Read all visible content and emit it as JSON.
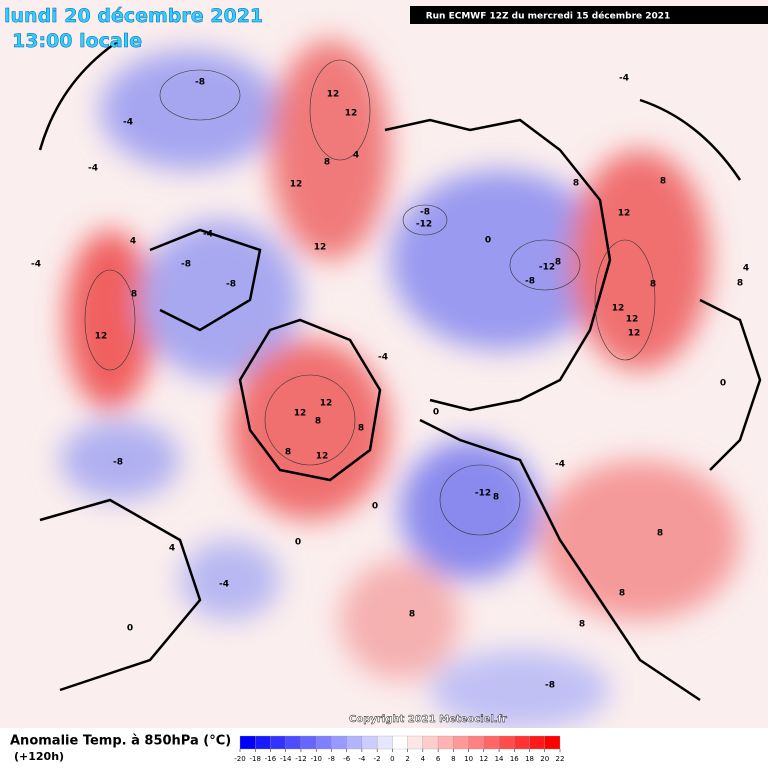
{
  "header": {
    "date": "lundi 20 décembre 2021",
    "time": "13:00 locale",
    "run": "Run ECMWF 12Z du mercredi 15 décembre 2021"
  },
  "map": {
    "contour_labels": [
      -8,
      -4,
      -4,
      12,
      12,
      8,
      12,
      12,
      4,
      -8,
      -12,
      0,
      -12,
      8,
      -8,
      -4,
      8,
      12,
      8,
      8,
      12,
      12,
      12,
      -4,
      -8,
      4,
      -4,
      8,
      12,
      -8,
      12,
      12,
      8,
      8,
      12,
      8,
      -4,
      -12,
      8,
      -8,
      4,
      -4,
      0,
      8,
      8,
      8,
      -8,
      8,
      0,
      0,
      0,
      -4,
      0,
      8,
      4
    ]
  },
  "legend": {
    "title": "Anomalie Temp. à 850hPa (°C)",
    "lead": "(+120h)",
    "copyright": "Copyright 2021 Meteociel.fr",
    "ticks": [
      -20,
      -18,
      -16,
      -14,
      -12,
      -10,
      -8,
      -6,
      -4,
      -2,
      0,
      2,
      4,
      6,
      8,
      10,
      12,
      14,
      16,
      18,
      20,
      22
    ],
    "colors": [
      "#0000ff",
      "#1a1aff",
      "#3333ff",
      "#4d4dff",
      "#6666ff",
      "#8080ff",
      "#9999ff",
      "#b3b3ff",
      "#ccccff",
      "#e6e6ff",
      "#ffffff",
      "#ffe6e6",
      "#ffcccc",
      "#ffb3b3",
      "#ff9999",
      "#ff8080",
      "#ff6666",
      "#ff4d4d",
      "#ff3333",
      "#ff1a1a",
      "#ff0000"
    ]
  }
}
